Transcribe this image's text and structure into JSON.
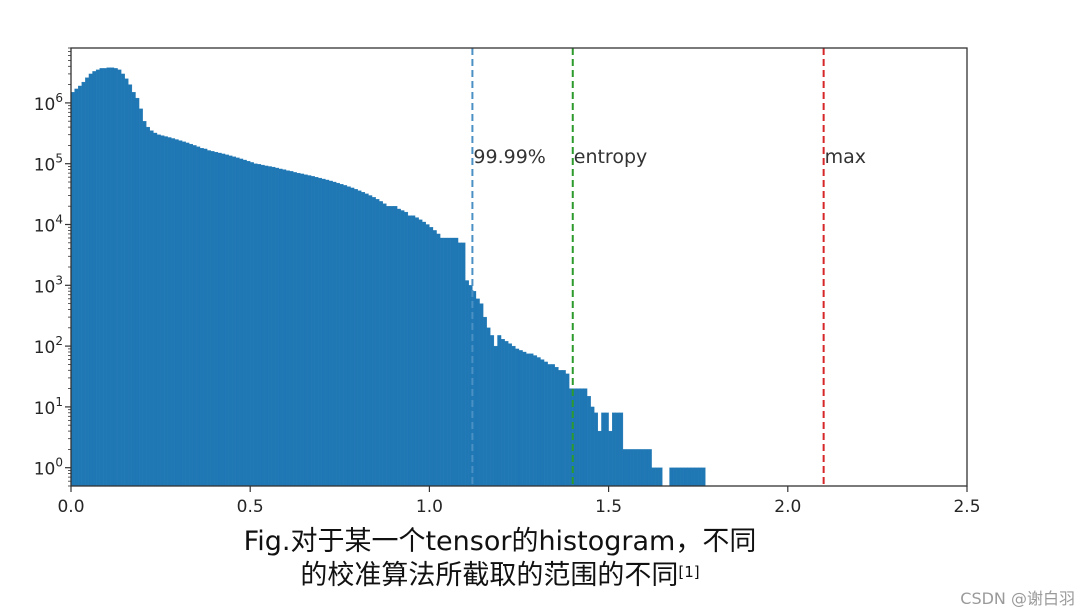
{
  "chart_data": {
    "type": "bar",
    "subtype": "histogram",
    "yscale": "log",
    "xlim": [
      0.0,
      2.5
    ],
    "ylim": [
      0.5,
      8000000
    ],
    "grid": false,
    "bar_color": "#1f77b4",
    "xticks": [
      {
        "value": 0.0,
        "label": "0.0"
      },
      {
        "value": 0.5,
        "label": "0.5"
      },
      {
        "value": 1.0,
        "label": "1.0"
      },
      {
        "value": 1.5,
        "label": "1.5"
      },
      {
        "value": 2.0,
        "label": "2.0"
      },
      {
        "value": 2.5,
        "label": "2.5"
      }
    ],
    "yticks": [
      {
        "value": 1,
        "base": "10",
        "exp": "0"
      },
      {
        "value": 10,
        "base": "10",
        "exp": "1"
      },
      {
        "value": 100,
        "base": "10",
        "exp": "2"
      },
      {
        "value": 1000,
        "base": "10",
        "exp": "3"
      },
      {
        "value": 10000,
        "base": "10",
        "exp": "4"
      },
      {
        "value": 100000,
        "base": "10",
        "exp": "5"
      },
      {
        "value": 1000000,
        "base": "10",
        "exp": "6"
      }
    ],
    "bins": {
      "start": 0.0,
      "width": 0.01,
      "counts": [
        1500000,
        1700000,
        1900000,
        2200000,
        2600000,
        3000000,
        3300000,
        3500000,
        3700000,
        3700000,
        3800000,
        3800000,
        3700000,
        3500000,
        3000000,
        2500000,
        2000000,
        1500000,
        1200000,
        800000,
        500000,
        400000,
        350000,
        320000,
        300000,
        290000,
        280000,
        270000,
        260000,
        250000,
        240000,
        230000,
        220000,
        210000,
        200000,
        190000,
        180000,
        175000,
        165000,
        160000,
        155000,
        150000,
        145000,
        140000,
        135000,
        130000,
        125000,
        120000,
        115000,
        110000,
        105000,
        100000,
        98000,
        95000,
        92000,
        90000,
        88000,
        85000,
        82000,
        80000,
        77000,
        75000,
        72000,
        70000,
        68000,
        66000,
        64000,
        62000,
        60000,
        58000,
        56000,
        54000,
        52000,
        50000,
        48000,
        46000,
        44000,
        42000,
        40000,
        38000,
        36000,
        34000,
        32000,
        30000,
        28000,
        26000,
        24000,
        22000,
        20000,
        20000,
        20000,
        18000,
        17000,
        16000,
        14000,
        14000,
        13000,
        12000,
        11000,
        10000,
        9000,
        8000,
        7000,
        6000,
        6000,
        6000,
        6000,
        6000,
        5000,
        5000,
        1200,
        1000,
        800,
        600,
        500,
        300,
        200,
        150,
        100,
        150,
        130,
        120,
        110,
        100,
        90,
        85,
        80,
        75,
        75,
        70,
        65,
        60,
        55,
        50,
        50,
        45,
        40,
        40,
        35,
        20,
        20,
        20,
        20,
        20,
        15,
        10,
        8,
        4,
        8,
        8,
        4,
        8,
        8,
        8,
        2,
        2,
        2,
        2,
        2,
        2,
        2,
        2,
        1,
        1,
        1,
        0,
        0,
        1,
        1,
        1,
        1,
        1,
        1,
        1,
        1,
        1,
        1,
        0,
        0,
        0,
        0,
        0,
        0,
        0,
        0,
        0,
        0,
        0,
        0,
        0,
        0,
        0,
        0,
        0,
        0,
        0,
        0,
        0,
        0,
        0,
        0,
        0,
        0,
        0,
        0,
        0,
        0,
        0,
        0,
        0,
        0,
        0,
        0,
        0,
        0,
        0,
        0,
        0,
        0,
        0,
        0,
        0,
        0,
        0,
        0,
        0,
        0,
        0,
        0,
        0,
        0,
        0,
        0,
        0,
        0,
        0,
        0,
        0,
        0,
        0,
        0,
        0,
        0,
        0,
        0,
        0,
        0,
        0,
        0,
        0,
        0,
        0,
        0,
        0,
        0,
        0,
        0,
        0,
        0,
        0,
        0,
        0,
        0,
        0,
        0,
        0,
        0,
        0,
        0,
        0
      ]
    },
    "vlines": [
      {
        "x": 1.12,
        "label": "99.99%",
        "color": "#4a90c4"
      },
      {
        "x": 1.4,
        "label": "entropy",
        "color": "#2c9a2c"
      },
      {
        "x": 2.1,
        "label": "max",
        "color": "#d62728"
      }
    ]
  },
  "caption": {
    "line1": "Fig.对于某一个tensor的histogram，不同",
    "line2": "的校准算法所截取的范围的不同",
    "ref": "[1]"
  },
  "watermark": "CSDN @谢白羽"
}
